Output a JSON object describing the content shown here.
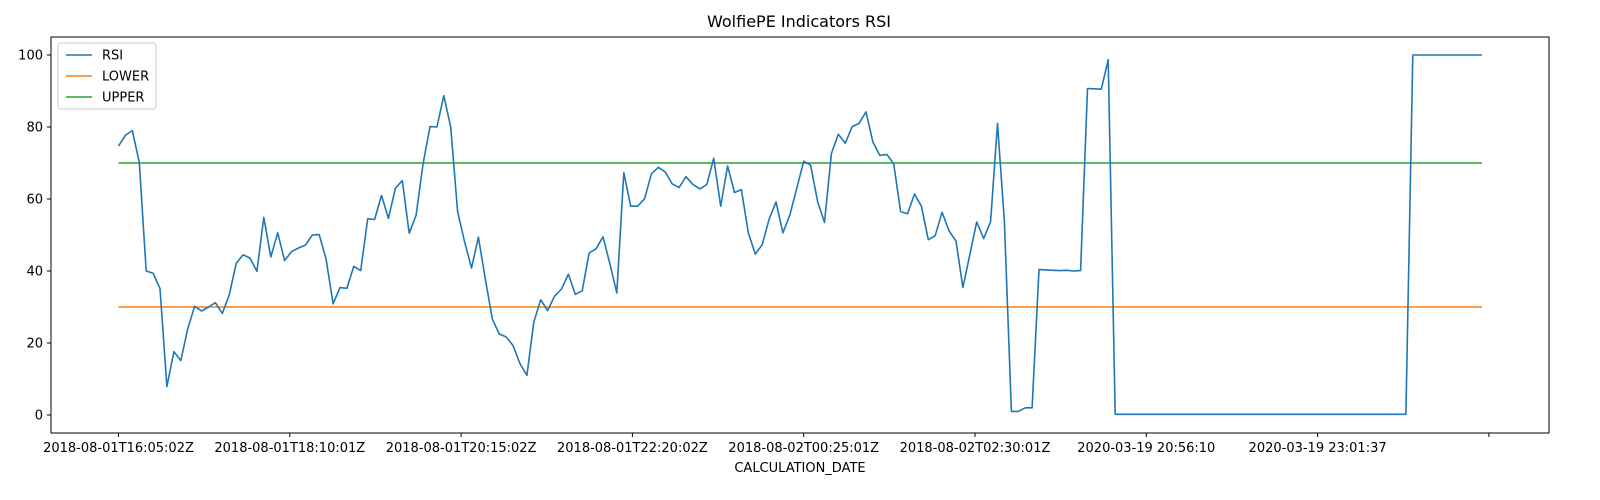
{
  "chart_data": {
    "type": "line",
    "title": "WolfiePE Indicators RSI",
    "xlabel": "CALCULATION_DATE",
    "ylabel": "",
    "ylim": [
      -5,
      105
    ],
    "y_ticks": [
      0,
      20,
      40,
      60,
      80,
      100
    ],
    "grid": false,
    "legend_placement": "top-left",
    "x_tick_labels": [
      "2018-08-01T16:05:02Z",
      "2018-08-01T18:10:01Z",
      "2018-08-01T20:15:02Z",
      "2018-08-01T22:20:02Z",
      "2018-08-02T00:25:01Z",
      "2018-08-02T02:30:01Z",
      "2020-03-19 20:56:10",
      "2020-03-19 23:01:37",
      ""
    ],
    "series": [
      {
        "name": "RSI",
        "color": "#1f77b4",
        "values": [
          74.7,
          77.7,
          79.0,
          70.2,
          40.0,
          39.4,
          35.1,
          7.9,
          17.6,
          15.1,
          23.9,
          30.2,
          28.9,
          30.0,
          31.2,
          28.2,
          33.3,
          42.1,
          44.5,
          43.6,
          39.9,
          54.9,
          43.9,
          50.6,
          42.9,
          45.4,
          46.4,
          47.2,
          50.0,
          50.1,
          43.3,
          30.9,
          35.4,
          35.2,
          41.3,
          40.1,
          54.5,
          54.3,
          61.0,
          54.6,
          63.0,
          65.1,
          50.5,
          55.5,
          69.7,
          80.1,
          80.0,
          88.7,
          80.0,
          56.5,
          48.1,
          40.8,
          49.4,
          37.8,
          26.7,
          22.5,
          21.7,
          19.3,
          14.3,
          11.0,
          25.8,
          32.0,
          29.0,
          33.0,
          35.0,
          39.1,
          33.5,
          34.5,
          45.0,
          46.2,
          49.5,
          42.0,
          33.9,
          67.3,
          58.0,
          58.0,
          60.0,
          67.0,
          68.8,
          67.5,
          64.2,
          63.2,
          66.2,
          64.0,
          62.8,
          64.0,
          71.3,
          58.0,
          69.2,
          61.8,
          62.6,
          50.6,
          44.7,
          47.3,
          54.4,
          59.2,
          50.6,
          55.6,
          63.0,
          70.5,
          69.4,
          59.3,
          53.5,
          72.6,
          78.0,
          75.5,
          80.1,
          81.0,
          84.2,
          75.8,
          72.1,
          72.4,
          69.8,
          56.5,
          55.9,
          61.4,
          58.0,
          48.7,
          49.8,
          56.3,
          51.1,
          48.3,
          35.4,
          44.5,
          53.6,
          49.0,
          53.7,
          81.0,
          53.7,
          1.0,
          1.0,
          2.0,
          2.0,
          40.4,
          40.3,
          40.2,
          40.1,
          40.2,
          40.0,
          40.1,
          90.7,
          90.6,
          90.5,
          98.7,
          0.2,
          0.2,
          0.2,
          0.2,
          0.2,
          0.2,
          0.2,
          0.2,
          0.2,
          0.2,
          0.2,
          0.2,
          0.2,
          0.2,
          0.2,
          0.2,
          0.2,
          0.2,
          0.2,
          0.2,
          0.2,
          0.2,
          0.2,
          0.2,
          0.2,
          0.2,
          0.2,
          0.2,
          0.2,
          0.2,
          0.2,
          0.2,
          0.2,
          0.2,
          0.2,
          0.2,
          0.2,
          0.2,
          0.2,
          0.2,
          0.2,
          0.2,
          0.2,
          100.0,
          100.0,
          100.0,
          100.0,
          100.0,
          100.0,
          100.0,
          100.0,
          100.0,
          100.0,
          100.0
        ]
      },
      {
        "name": "LOWER",
        "color": "#ff7f0e",
        "constant": 30
      },
      {
        "name": "UPPER",
        "color": "#2ca02c",
        "constant": 70
      }
    ]
  }
}
